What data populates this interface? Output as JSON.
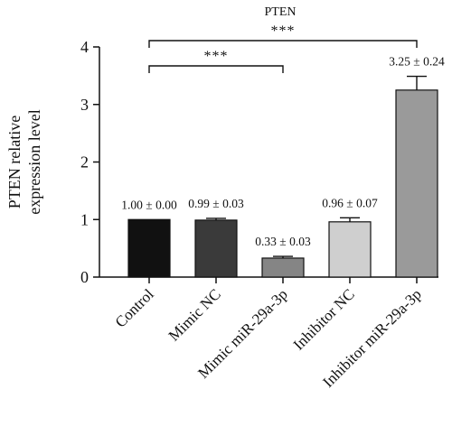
{
  "chart_data": {
    "type": "bar",
    "title": "PTEN",
    "ylabel_lines": [
      "PTEN relative",
      "expression level"
    ],
    "xlabel": "",
    "ylim": [
      0,
      4
    ],
    "yticks": [
      0,
      1,
      2,
      3,
      4
    ],
    "categories": [
      "Control",
      "Mimic NC",
      "Mimic miR-29a-3p",
      "Inhibitor NC",
      "Inhibitor miR-29a-3p"
    ],
    "values": [
      1.0,
      0.99,
      0.33,
      0.96,
      3.25
    ],
    "errors": [
      0.0,
      0.03,
      0.03,
      0.07,
      0.24
    ],
    "value_labels": [
      "1.00 ± 0.00",
      "0.99 ± 0.03",
      "0.33 ± 0.03",
      "0.96 ± 0.07",
      "3.25 ± 0.24"
    ],
    "bar_colors": [
      "#111111",
      "#3a3a3a",
      "#858585",
      "#cfcfcf",
      "#9a9a9a"
    ],
    "grid": false,
    "significance": [
      {
        "from": 0,
        "to": 2,
        "label": "***"
      },
      {
        "from": 0,
        "to": 4,
        "label": "***"
      }
    ]
  }
}
